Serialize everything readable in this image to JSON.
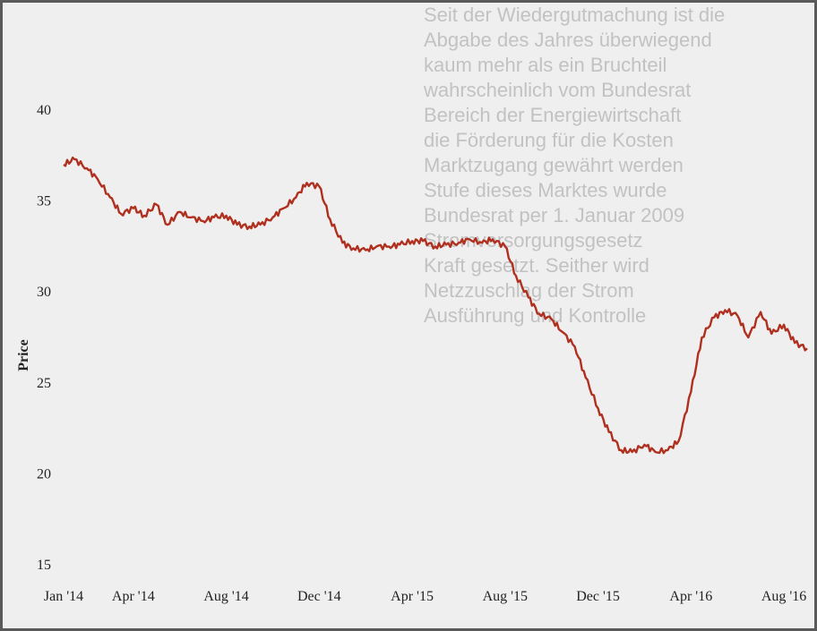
{
  "background_text": [
    "Seit der Wiedergutmachung ist die",
    "Abgabe des Jahres überwiegend",
    "kaum mehr als ein Bruchteil",
    "wahrscheinlich vom Bundesrat",
    "Bereich der Energiewirtschaft",
    "die Förderung für die Kosten",
    "Marktzugang gewährt werden",
    "Stufe dieses Marktes wurde",
    "Bundesrat per 1. Januar 2009",
    "Stromversorgungsgesetz",
    "Kraft gesetzt. Seither wird",
    "Netzzuschlag der Strom",
    "Ausführung und Kontrolle"
  ],
  "chart_data": {
    "type": "line",
    "title": "",
    "xlabel": "",
    "ylabel": "Price",
    "ylim": [
      15,
      40
    ],
    "yticks": [
      15,
      20,
      25,
      30,
      35,
      40
    ],
    "xlim": [
      "2014-01",
      "2016-09"
    ],
    "xticks": [
      "Jan '14",
      "Apr '14",
      "Aug '14",
      "Dec '14",
      "Apr '15",
      "Aug '15",
      "Dec '15",
      "Apr '16",
      "Aug '16"
    ],
    "grid": false,
    "color": "#b03020",
    "series": [
      {
        "name": "",
        "x": [
          "2014-01-01",
          "2014-01-15",
          "2014-02-01",
          "2014-02-15",
          "2014-03-01",
          "2014-03-15",
          "2014-04-01",
          "2014-04-15",
          "2014-05-01",
          "2014-05-15",
          "2014-06-01",
          "2014-06-15",
          "2014-07-01",
          "2014-07-15",
          "2014-08-01",
          "2014-08-15",
          "2014-09-01",
          "2014-09-15",
          "2014-10-01",
          "2014-10-15",
          "2014-11-01",
          "2014-11-15",
          "2014-12-01",
          "2014-12-15",
          "2015-01-01",
          "2015-01-15",
          "2015-02-01",
          "2015-02-15",
          "2015-03-01",
          "2015-03-15",
          "2015-04-01",
          "2015-04-15",
          "2015-05-01",
          "2015-05-15",
          "2015-06-01",
          "2015-06-15",
          "2015-07-01",
          "2015-07-15",
          "2015-08-01",
          "2015-08-15",
          "2015-09-01",
          "2015-09-15",
          "2015-10-01",
          "2015-10-15",
          "2015-11-01",
          "2015-11-15",
          "2015-12-01",
          "2015-12-15",
          "2016-01-01",
          "2016-01-15",
          "2016-02-01",
          "2016-02-15",
          "2016-03-01",
          "2016-03-15",
          "2016-04-01",
          "2016-04-15",
          "2016-05-01",
          "2016-05-15",
          "2016-06-01",
          "2016-06-15",
          "2016-07-01",
          "2016-07-15",
          "2016-08-01",
          "2016-08-15",
          "2016-09-01"
        ],
        "y": [
          37.0,
          37.3,
          36.8,
          36.2,
          35.2,
          34.3,
          34.6,
          34.2,
          34.8,
          33.7,
          34.4,
          34.1,
          33.9,
          34.1,
          34.2,
          33.7,
          33.6,
          33.7,
          34.1,
          34.6,
          35.2,
          36.0,
          35.8,
          34.0,
          32.7,
          32.4,
          32.3,
          32.5,
          32.5,
          32.6,
          32.8,
          32.8,
          32.5,
          32.6,
          32.7,
          32.9,
          32.7,
          32.9,
          32.5,
          30.9,
          29.7,
          28.8,
          28.5,
          27.8,
          27.0,
          25.3,
          23.6,
          22.3,
          21.3,
          21.2,
          21.6,
          21.2,
          21.3,
          21.8,
          24.5,
          27.5,
          28.6,
          29.0,
          28.7,
          27.5,
          28.9,
          27.7,
          28.2,
          27.2,
          26.9
        ]
      }
    ]
  }
}
